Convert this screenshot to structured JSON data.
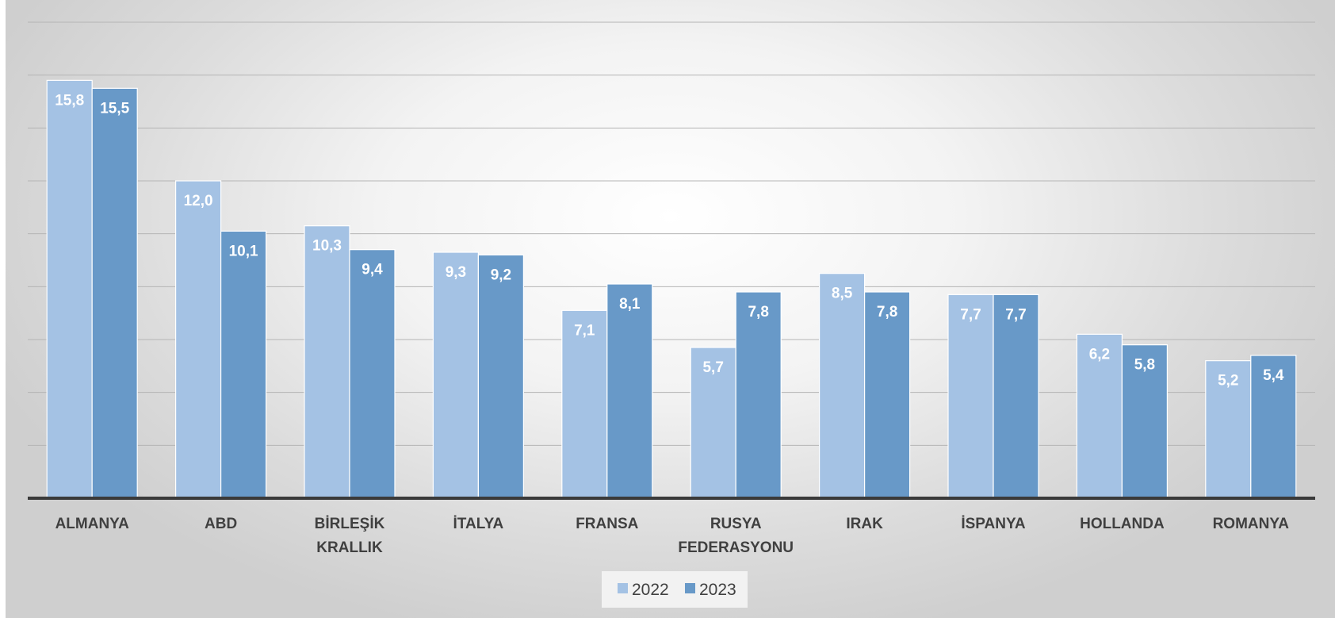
{
  "chart_data": {
    "type": "bar",
    "categories": [
      [
        "ALMANYA"
      ],
      [
        "ABD"
      ],
      [
        "BİRLEŞİK",
        "KRALLIK"
      ],
      [
        "İTALYA"
      ],
      [
        "FRANSA"
      ],
      [
        "RUSYA",
        "FEDERASYONU"
      ],
      [
        "IRAK"
      ],
      [
        "İSPANYA"
      ],
      [
        "HOLLANDA"
      ],
      [
        "ROMANYA"
      ]
    ],
    "series": [
      {
        "name": "2022",
        "color": "#a4c2e4",
        "values": [
          15.8,
          12.0,
          10.3,
          9.3,
          7.1,
          5.7,
          8.5,
          7.7,
          6.2,
          5.2
        ],
        "labels": [
          "15,8",
          "12,0",
          "10,3",
          "9,3",
          "7,1",
          "5,7",
          "8,5",
          "7,7",
          "6,2",
          "5,2"
        ]
      },
      {
        "name": "2023",
        "color": "#6899c8",
        "values": [
          15.5,
          10.1,
          9.4,
          9.2,
          8.1,
          7.8,
          7.8,
          7.7,
          5.8,
          5.4
        ],
        "labels": [
          "15,5",
          "10,1",
          "9,4",
          "9,2",
          "8,1",
          "7,8",
          "7,8",
          "7,7",
          "5,8",
          "5,4"
        ]
      }
    ],
    "ylim": [
      0,
      18
    ],
    "gridlines": [
      2,
      4,
      6,
      8,
      10,
      12,
      14,
      16,
      18
    ],
    "grid": true,
    "legend_position": "bottom-center"
  }
}
